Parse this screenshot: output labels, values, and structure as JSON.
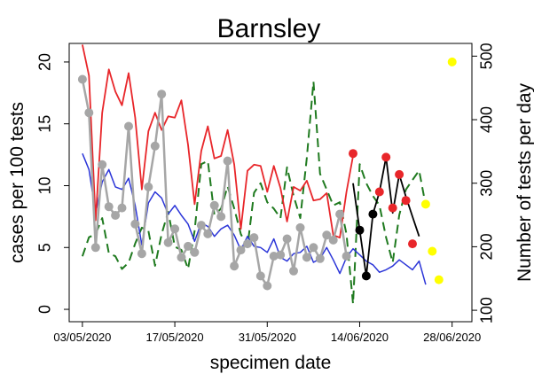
{
  "chart_data": {
    "type": "line",
    "title": "Barnsley",
    "xlabel": "specimen date",
    "ylabel_left": "cases per 100 tests",
    "ylabel_right": "Number of tests per day",
    "x_tick_labels": [
      "03/05/2020",
      "17/05/2020",
      "31/05/2020",
      "14/06/2020",
      "28/06/2020"
    ],
    "x_tick_days": [
      0,
      14,
      28,
      42,
      56
    ],
    "ylim_left": [
      -1,
      21.5
    ],
    "yticks_left": [
      "0",
      "5",
      "10",
      "15",
      "20"
    ],
    "yticks_left_values": [
      0,
      5,
      10,
      15,
      20
    ],
    "ylim_right": [
      82,
      520
    ],
    "yticks_right": [
      "100",
      "200",
      "300",
      "400",
      "500"
    ],
    "yticks_right_values": [
      100,
      200,
      300,
      400,
      500
    ],
    "x_range_days": [
      -2,
      59
    ],
    "legend": "none",
    "grid": false,
    "colors": {
      "red": "#e8262a",
      "blue": "#2b35d8",
      "green": "#1f7a1f",
      "gray": "#a6a6a6",
      "black": "#000000",
      "yellow": "#ffff00"
    },
    "series": [
      {
        "style": "red-line",
        "axis": "left",
        "x": [
          0,
          1,
          2,
          3,
          4,
          5,
          6,
          7,
          8,
          9,
          10,
          11,
          12,
          13,
          14,
          15,
          16,
          17,
          18,
          19,
          20,
          21,
          22,
          23,
          24,
          25,
          26,
          27,
          28,
          29,
          30,
          31,
          32,
          33,
          34,
          35,
          36,
          37,
          38,
          39,
          40,
          41
        ],
        "values": [
          21.4,
          18.9,
          7.2,
          15.9,
          19.4,
          17.6,
          16.5,
          19.1,
          15.5,
          9.7,
          14.4,
          15.9,
          14.5,
          15.6,
          15.5,
          16.9,
          13.3,
          8.5,
          12.8,
          14.8,
          12.2,
          12.4,
          14.5,
          11.7,
          6.5,
          11.2,
          11.7,
          11.6,
          9.5,
          11.6,
          9.8,
          7.1,
          9.9,
          9.6,
          10.4,
          8.8,
          8.9,
          9.4,
          6.0,
          5.8,
          9.5,
          12.4
        ]
      },
      {
        "style": "blue-line",
        "axis": "left",
        "x": [
          0,
          1,
          2,
          3,
          4,
          5,
          6,
          7,
          8,
          9,
          10,
          11,
          12,
          13,
          14,
          15,
          16,
          17,
          18,
          19,
          20,
          21,
          22,
          23,
          24,
          25,
          26,
          27,
          28,
          29,
          30,
          31,
          32,
          33,
          34,
          35,
          36,
          37,
          38,
          39,
          40,
          41,
          42,
          43,
          44,
          45,
          46,
          47,
          48,
          49,
          50,
          51,
          52
        ],
        "values": [
          12.6,
          11.3,
          7.8,
          10.3,
          11.3,
          9.9,
          9.7,
          10.6,
          8.4,
          5.2,
          8.6,
          9.5,
          9.0,
          7.7,
          8.4,
          7.6,
          6.9,
          5.5,
          7.0,
          6.7,
          5.9,
          6.5,
          6.8,
          6.0,
          4.8,
          5.9,
          5.1,
          5.0,
          4.6,
          5.7,
          4.2,
          3.9,
          4.5,
          4.6,
          5.1,
          3.8,
          4.1,
          5.0,
          4.0,
          2.9,
          4.2,
          4.9,
          4.4,
          3.9,
          3.6,
          3.0,
          3.2,
          3.5,
          4.0,
          3.6,
          3.2,
          3.9,
          2.0
        ]
      },
      {
        "style": "green-dashed",
        "axis": "right",
        "x": [
          0,
          1,
          2,
          3,
          4,
          5,
          6,
          7,
          8,
          9,
          10,
          11,
          12,
          13,
          14,
          15,
          16,
          17,
          18,
          19,
          20,
          21,
          22,
          23,
          24,
          25,
          26,
          27,
          28,
          29,
          30,
          31,
          32,
          33,
          34,
          35,
          36,
          37,
          38,
          39,
          40,
          41,
          42,
          43,
          44,
          45,
          46,
          47,
          48,
          49,
          50,
          51,
          52
        ],
        "values": [
          185,
          215,
          220,
          245,
          190,
          185,
          165,
          175,
          205,
          230,
          225,
          170,
          220,
          255,
          200,
          195,
          165,
          225,
          330,
          335,
          250,
          260,
          295,
          260,
          220,
          200,
          285,
          300,
          270,
          260,
          245,
          325,
          280,
          245,
          340,
          460,
          315,
          290,
          265,
          270,
          220,
          110,
          330,
          300,
          280,
          265,
          215,
          175,
          250,
          290,
          305,
          320,
          265
        ]
      },
      {
        "style": "gray-dots",
        "axis": "left",
        "x": [
          0,
          1,
          2,
          3,
          4,
          5,
          6,
          7,
          8,
          9,
          10,
          11,
          12,
          13,
          14,
          15,
          16,
          17,
          18,
          19,
          20,
          21,
          22,
          23,
          24,
          25,
          26,
          27,
          28,
          29,
          30,
          31,
          32,
          33,
          34,
          35,
          36,
          37,
          38,
          39,
          40
        ],
        "values": [
          18.6,
          15.9,
          5.0,
          11.7,
          8.3,
          7.6,
          8.2,
          14.8,
          6.9,
          4.5,
          9.9,
          13.2,
          17.4,
          5.4,
          6.5,
          4.2,
          5.1,
          4.6,
          6.8,
          6.1,
          8.4,
          7.5,
          12.0,
          3.5,
          4.8,
          5.3,
          5.8,
          2.7,
          1.9,
          4.3,
          4.4,
          5.7,
          3.1,
          6.6,
          4.2,
          5.0,
          4.1,
          6.0,
          5.6,
          7.7,
          4.3
        ]
      },
      {
        "style": "black-line",
        "axis": "left",
        "x": [
          41,
          42,
          43,
          44,
          45,
          46,
          47,
          48,
          49,
          50,
          51
        ],
        "values": [
          10.2,
          6.4,
          2.7,
          7.7,
          9.5,
          12.3,
          7.8,
          10.9,
          9.1,
          7.5,
          5.9
        ]
      },
      {
        "style": "black-dots",
        "axis": "left",
        "x": [
          42,
          43,
          44
        ],
        "values": [
          6.4,
          2.7,
          7.7
        ]
      },
      {
        "style": "red-dots",
        "axis": "left",
        "x": [
          41,
          45,
          46,
          47,
          48,
          49,
          50
        ],
        "values": [
          12.6,
          9.5,
          12.3,
          8.2,
          10.9,
          8.8,
          5.3
        ]
      },
      {
        "style": "yellow-dots",
        "axis": "left",
        "x": [
          52,
          53,
          54,
          56
        ],
        "values": [
          8.5,
          4.7,
          2.4,
          20.0
        ]
      }
    ]
  }
}
